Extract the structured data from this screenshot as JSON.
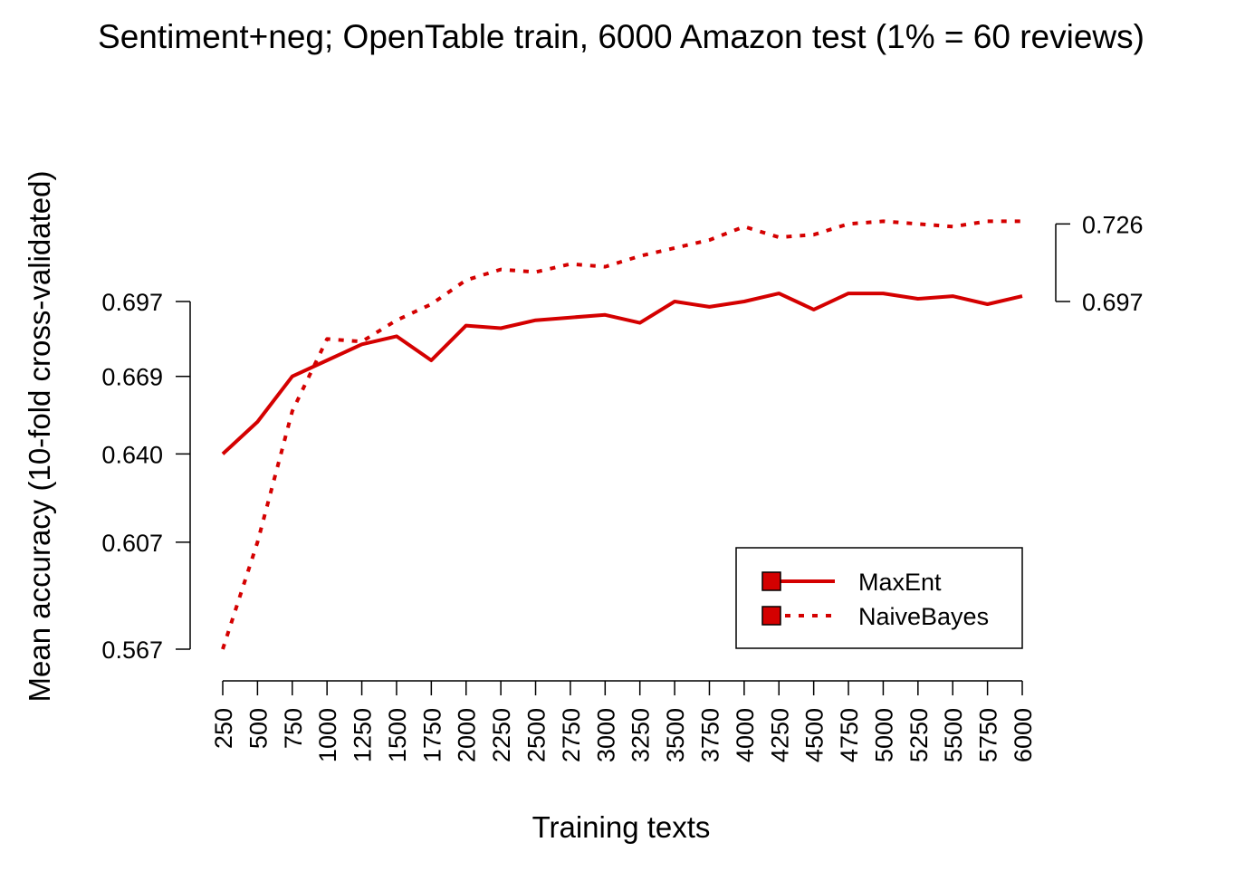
{
  "chart_data": {
    "type": "line",
    "title": "Sentiment+neg; OpenTable train, 6000 Amazon test (1% = 60 reviews)",
    "xlabel": "Training texts",
    "ylabel": "Mean accuracy (10-fold cross-validated)",
    "x": [
      250,
      500,
      750,
      1000,
      1250,
      1500,
      1750,
      2000,
      2250,
      2500,
      2750,
      3000,
      3250,
      3500,
      3750,
      4000,
      4250,
      4500,
      4750,
      5000,
      5250,
      5500,
      5750,
      6000
    ],
    "x_tick_labels": [
      "250",
      "500",
      "750",
      "1000",
      "1250",
      "1500",
      "1750",
      "2000",
      "2250",
      "2500",
      "2750",
      "3000",
      "3250",
      "3500",
      "3750",
      "4000",
      "4250",
      "4500",
      "4750",
      "5000",
      "5250",
      "5500",
      "5750",
      "6000"
    ],
    "y_ticks": [
      0.567,
      0.607,
      0.64,
      0.669,
      0.697
    ],
    "y_tick_labels": [
      "0.567",
      "0.607",
      "0.640",
      "0.669",
      "0.697"
    ],
    "ylim": [
      0.567,
      0.726
    ],
    "grid": false,
    "series": [
      {
        "name": "MaxEnt",
        "color": "#d40000",
        "line_style": "solid",
        "values": [
          0.64,
          0.652,
          0.669,
          0.675,
          0.681,
          0.684,
          0.675,
          0.688,
          0.687,
          0.69,
          0.691,
          0.692,
          0.689,
          0.697,
          0.695,
          0.697,
          0.7,
          0.694,
          0.7,
          0.7,
          0.698,
          0.699,
          0.696,
          0.699
        ]
      },
      {
        "name": "NaiveBayes",
        "color": "#d40000",
        "line_style": "dotted",
        "values": [
          0.567,
          0.607,
          0.656,
          0.683,
          0.682,
          0.69,
          0.696,
          0.705,
          0.709,
          0.708,
          0.711,
          0.71,
          0.714,
          0.717,
          0.72,
          0.725,
          0.721,
          0.722,
          0.726,
          0.727,
          0.726,
          0.725,
          0.727,
          0.727
        ]
      }
    ],
    "legend": {
      "position": "bottom-right",
      "entries": [
        "MaxEnt",
        "NaiveBayes"
      ]
    },
    "right_bracket": {
      "labels": [
        "0.726",
        "0.697"
      ]
    }
  }
}
